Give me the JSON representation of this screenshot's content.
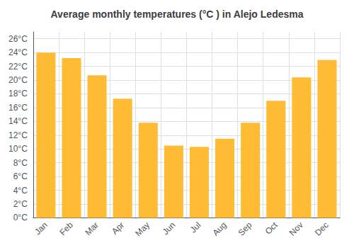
{
  "chart_data": {
    "type": "bar",
    "title": "Average monthly temperatures (°C ) in Alejo Ledesma",
    "categories": [
      "Jan",
      "Feb",
      "Mar",
      "Apr",
      "May",
      "Jun",
      "Jul",
      "Aug",
      "Sep",
      "Oct",
      "Nov",
      "Dec"
    ],
    "values": [
      24.0,
      23.2,
      20.7,
      17.3,
      13.8,
      10.5,
      10.3,
      11.5,
      13.8,
      17.0,
      20.4,
      22.9
    ],
    "color": "#FFBB33",
    "ylim": [
      0,
      27
    ],
    "yticks": [
      {
        "value": 0,
        "label": "0°C"
      },
      {
        "value": 2,
        "label": "2°C"
      },
      {
        "value": 4,
        "label": "4°C"
      },
      {
        "value": 6,
        "label": "6°C"
      },
      {
        "value": 8,
        "label": "8°C"
      },
      {
        "value": 10,
        "label": "10°C"
      },
      {
        "value": 12,
        "label": "12°C"
      },
      {
        "value": 14,
        "label": "14°C"
      },
      {
        "value": 16,
        "label": "16°C"
      },
      {
        "value": 18,
        "label": "18°C"
      },
      {
        "value": 20,
        "label": "20°C"
      },
      {
        "value": 22,
        "label": "22°C"
      },
      {
        "value": 24,
        "label": "24°C"
      },
      {
        "value": 26,
        "label": "26°C"
      }
    ],
    "grid": true
  }
}
